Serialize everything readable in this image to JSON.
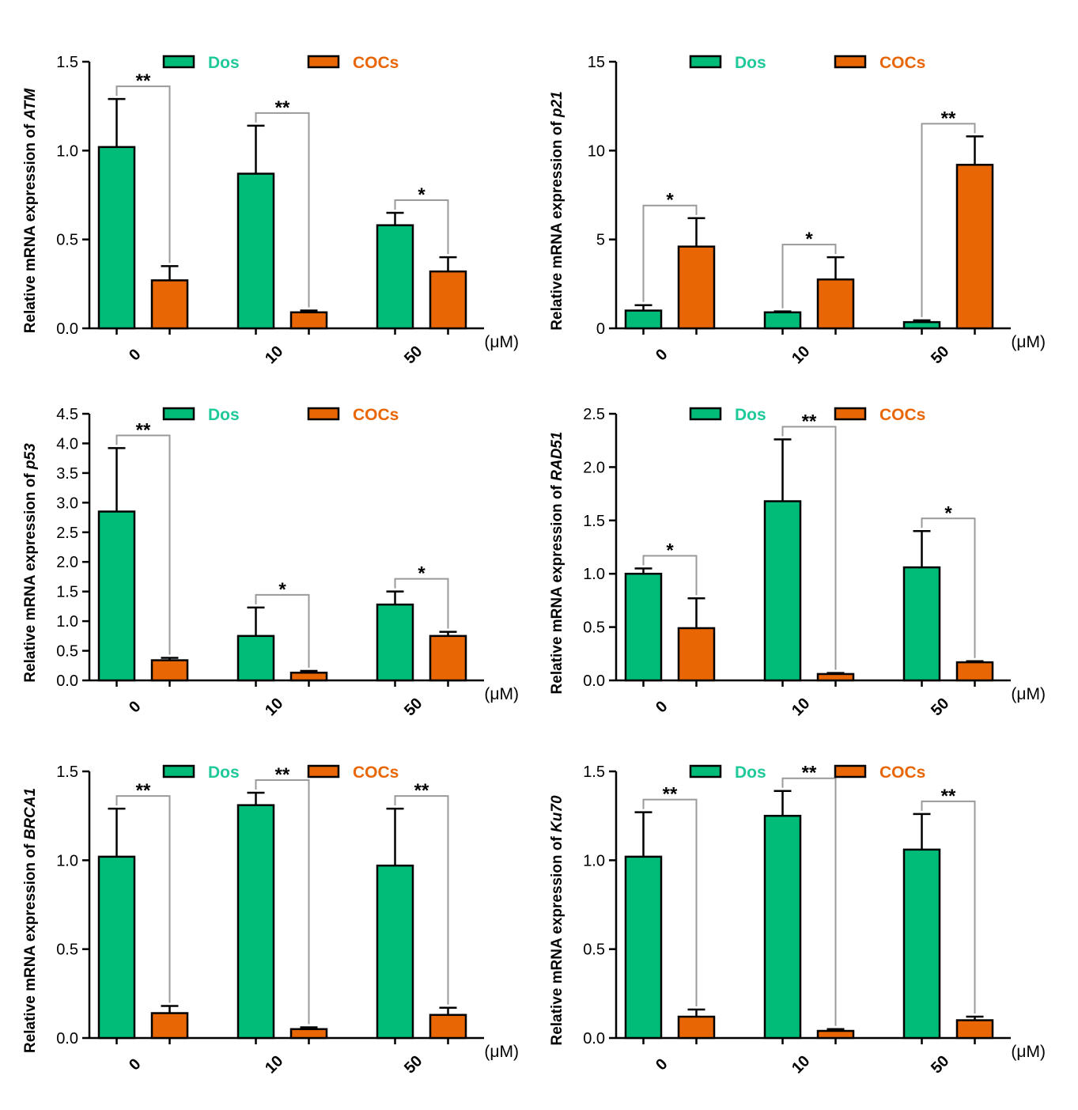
{
  "colors": {
    "dos": "#00bc78",
    "cocs": "#e86604",
    "dos_text": "#1fc99a",
    "cocs_text": "#e86604"
  },
  "legend": {
    "dos": "Dos",
    "cocs": "COCs"
  },
  "chart_data": [
    {
      "type": "bar",
      "ylabel_prefix": "Relative mRNA expression of ",
      "gene": "ATM",
      "categories": [
        "0",
        "10",
        "50"
      ],
      "unit": "(μM)",
      "ylim": [
        0,
        1.5
      ],
      "yticks": [
        "0.0",
        "0.5",
        "1.0",
        "1.5"
      ],
      "series": [
        {
          "name": "Dos",
          "values": [
            1.02,
            0.87,
            0.58
          ],
          "errors": [
            0.27,
            0.27,
            0.07
          ]
        },
        {
          "name": "COCs",
          "values": [
            0.27,
            0.09,
            0.32
          ],
          "errors": [
            0.08,
            0.01,
            0.08
          ]
        }
      ],
      "significance": [
        "**",
        "**",
        "*"
      ]
    },
    {
      "type": "bar",
      "ylabel_prefix": "Relative mRNA expression of ",
      "gene": "p21",
      "categories": [
        "0",
        "10",
        "50"
      ],
      "unit": "(μM)",
      "ylim": [
        0,
        15
      ],
      "yticks": [
        "0",
        "5",
        "10",
        "15"
      ],
      "series": [
        {
          "name": "Dos",
          "values": [
            1.0,
            0.9,
            0.35
          ],
          "errors": [
            0.3,
            0.05,
            0.1
          ]
        },
        {
          "name": "COCs",
          "values": [
            4.6,
            2.75,
            9.2
          ],
          "errors": [
            1.6,
            1.25,
            1.6
          ]
        }
      ],
      "significance": [
        "*",
        "*",
        "**"
      ]
    },
    {
      "type": "bar",
      "ylabel_prefix": "Relative mRNA expression of ",
      "gene": "p53",
      "categories": [
        "0",
        "10",
        "50"
      ],
      "unit": "(μM)",
      "ylim": [
        0,
        4.5
      ],
      "yticks": [
        "0.0",
        "0.5",
        "1.0",
        "1.5",
        "2.0",
        "2.5",
        "3.0",
        "3.5",
        "4.0",
        "4.5"
      ],
      "series": [
        {
          "name": "Dos",
          "values": [
            2.85,
            0.75,
            1.28
          ],
          "errors": [
            1.07,
            0.48,
            0.22
          ]
        },
        {
          "name": "COCs",
          "values": [
            0.34,
            0.13,
            0.75
          ],
          "errors": [
            0.04,
            0.03,
            0.07
          ]
        }
      ],
      "significance": [
        "**",
        "*",
        "*"
      ]
    },
    {
      "type": "bar",
      "ylabel_prefix": "Relative mRNA expression of ",
      "gene": "RAD51",
      "categories": [
        "0",
        "10",
        "50"
      ],
      "unit": "(μM)",
      "ylim": [
        0,
        2.5
      ],
      "yticks": [
        "0.0",
        "0.5",
        "1.0",
        "1.5",
        "2.0",
        "2.5"
      ],
      "series": [
        {
          "name": "Dos",
          "values": [
            1.0,
            1.68,
            1.06
          ],
          "errors": [
            0.05,
            0.58,
            0.34
          ]
        },
        {
          "name": "COCs",
          "values": [
            0.49,
            0.06,
            0.17
          ],
          "errors": [
            0.28,
            0.01,
            0.01
          ]
        }
      ],
      "significance": [
        "*",
        "**",
        "*"
      ]
    },
    {
      "type": "bar",
      "ylabel_prefix": "Relative mRNA expression of ",
      "gene": "BRCA1",
      "categories": [
        "0",
        "10",
        "50"
      ],
      "unit": "(μM)",
      "ylim": [
        0,
        1.5
      ],
      "yticks": [
        "0.0",
        "0.5",
        "1.0",
        "1.5"
      ],
      "series": [
        {
          "name": "Dos",
          "values": [
            1.02,
            1.31,
            0.97
          ],
          "errors": [
            0.27,
            0.07,
            0.32
          ]
        },
        {
          "name": "COCs",
          "values": [
            0.14,
            0.05,
            0.13
          ],
          "errors": [
            0.04,
            0.01,
            0.04
          ]
        }
      ],
      "significance": [
        "**",
        "**",
        "**"
      ]
    },
    {
      "type": "bar",
      "ylabel_prefix": "Relative mRNA expression of ",
      "gene": "Ku70",
      "categories": [
        "0",
        "10",
        "50"
      ],
      "unit": "(μM)",
      "ylim": [
        0,
        1.5
      ],
      "yticks": [
        "0.0",
        "0.5",
        "1.0",
        "1.5"
      ],
      "series": [
        {
          "name": "Dos",
          "values": [
            1.02,
            1.25,
            1.06
          ],
          "errors": [
            0.25,
            0.14,
            0.2
          ]
        },
        {
          "name": "COCs",
          "values": [
            0.12,
            0.04,
            0.1
          ],
          "errors": [
            0.04,
            0.01,
            0.02
          ]
        }
      ],
      "significance": [
        "**",
        "**",
        "**"
      ]
    }
  ]
}
